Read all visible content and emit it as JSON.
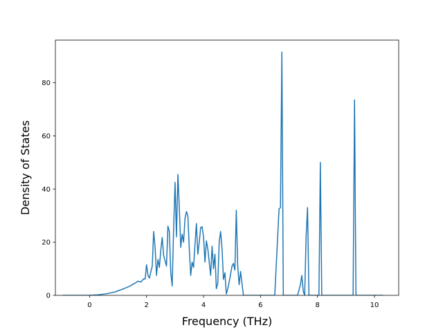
{
  "chart_data": {
    "type": "line",
    "title": "",
    "xlabel": "Frequency (THz)",
    "ylabel": "Density of States",
    "xlim": [
      -1.2,
      10.85
    ],
    "ylim": [
      0,
      96
    ],
    "xticks": [
      0,
      2,
      4,
      6,
      8,
      10
    ],
    "yticks": [
      0,
      20,
      40,
      60,
      80
    ],
    "grid": false,
    "line_color": "#1f77b4",
    "series": [
      {
        "x": [
          -0.94,
          0.0,
          0.3,
          0.6,
          0.9,
          1.2,
          1.4,
          1.6,
          1.7,
          1.8,
          1.9,
          1.95,
          2.0,
          2.05,
          2.1,
          2.2,
          2.25,
          2.3,
          2.35,
          2.4,
          2.45,
          2.5,
          2.55,
          2.6,
          2.65,
          2.7,
          2.75,
          2.8,
          2.85,
          2.9,
          2.95,
          3.0,
          3.05,
          3.1,
          3.15,
          3.2,
          3.25,
          3.3,
          3.35,
          3.4,
          3.45,
          3.5,
          3.55,
          3.6,
          3.65,
          3.7,
          3.75,
          3.8,
          3.85,
          3.9,
          3.95,
          4.0,
          4.05,
          4.1,
          4.15,
          4.2,
          4.25,
          4.3,
          4.35,
          4.4,
          4.45,
          4.5,
          4.55,
          4.6,
          4.65,
          4.7,
          4.75,
          4.8,
          4.85,
          4.9,
          4.95,
          5.0,
          5.05,
          5.1,
          5.15,
          5.2,
          5.25,
          5.3,
          5.35,
          5.4,
          5.45,
          5.5,
          5.55,
          5.6,
          5.65,
          5.7,
          5.75,
          5.8,
          5.85,
          5.9,
          5.95,
          6.0,
          6.05,
          6.5,
          6.65,
          6.7,
          6.75,
          6.8,
          6.85,
          7.0,
          7.3,
          7.4,
          7.45,
          7.5,
          7.55,
          7.6,
          7.65,
          7.7,
          7.75,
          8.0,
          8.05,
          8.1,
          8.15,
          8.2,
          9.25,
          9.3,
          9.35,
          9.4,
          10.3
        ],
        "y": [
          0,
          0,
          0.2,
          0.6,
          1.3,
          2.5,
          3.4,
          4.6,
          5.3,
          5.0,
          6.2,
          6.1,
          11.5,
          7.5,
          6.5,
          11.0,
          24.0,
          18.0,
          7.5,
          13.5,
          10.5,
          17.0,
          21.8,
          15.0,
          13.0,
          11.0,
          26.0,
          24.0,
          8.5,
          3.5,
          25.0,
          42.5,
          22.0,
          45.5,
          33.0,
          18.0,
          23.0,
          20.0,
          29.0,
          31.5,
          30.0,
          17.5,
          7.5,
          12.5,
          10.5,
          19.0,
          27.0,
          15.5,
          20.0,
          25.5,
          25.8,
          22.0,
          12.5,
          20.5,
          17.5,
          12.5,
          7.5,
          18.5,
          10.0,
          15.5,
          2.5,
          4.5,
          20.0,
          24.0,
          17.5,
          6.0,
          8.5,
          0.5,
          2.5,
          5.0,
          8.0,
          11.0,
          12.0,
          9.5,
          32.0,
          11.0,
          4.0,
          9.0,
          4.5,
          0,
          0,
          0,
          0,
          0,
          0,
          0,
          0,
          0,
          0,
          0,
          0,
          0,
          0,
          0,
          32.5,
          33.0,
          91.5,
          0,
          0,
          0,
          0,
          4.0,
          7.5,
          1.5,
          0,
          22.0,
          33.0,
          0,
          0,
          0,
          0,
          50.0,
          0,
          0,
          0,
          73.5,
          0,
          0,
          0
        ]
      }
    ]
  }
}
